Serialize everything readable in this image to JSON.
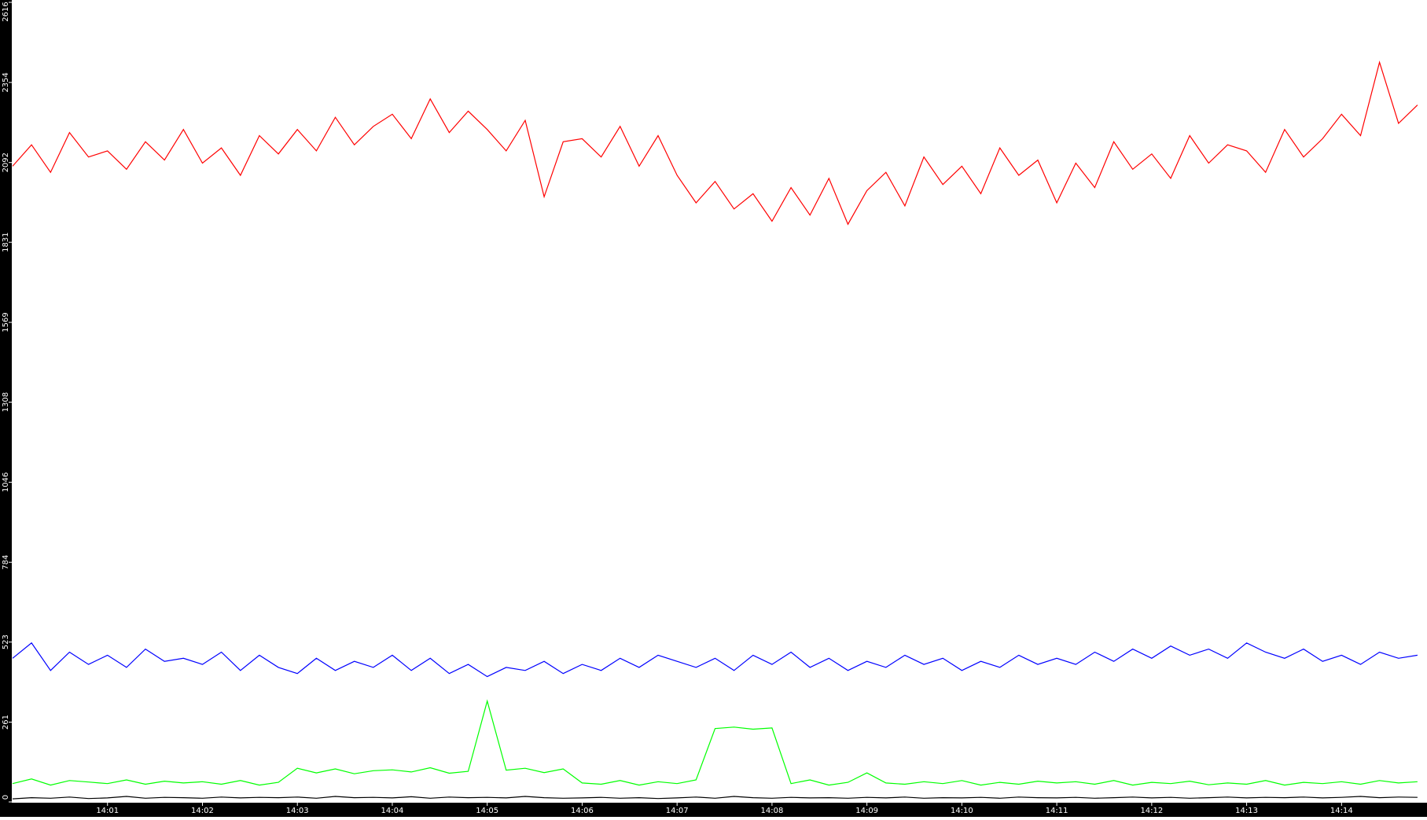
{
  "chart_data": {
    "type": "line",
    "categories": [
      null,
      null,
      null,
      null,
      null,
      "14:01",
      null,
      null,
      null,
      null,
      "14:02",
      null,
      null,
      null,
      null,
      "14:03",
      null,
      null,
      null,
      null,
      "14:04",
      null,
      null,
      null,
      null,
      "14:05",
      null,
      null,
      null,
      null,
      "14:06",
      null,
      null,
      null,
      null,
      "14:07",
      null,
      null,
      null,
      null,
      "14:08",
      null,
      null,
      null,
      null,
      "14:09",
      null,
      null,
      null,
      null,
      "14:10",
      null,
      null,
      null,
      null,
      "14:11",
      null,
      null,
      null,
      null,
      "14:12",
      null,
      null,
      null,
      null,
      "14:13",
      null,
      null,
      null,
      null,
      "14:14",
      null,
      null,
      null,
      null
    ],
    "series": [
      {
        "color": "#ff0000",
        "values": [
          2080,
          2150,
          2060,
          2190,
          2110,
          2130,
          2070,
          2160,
          2100,
          2200,
          2090,
          2140,
          2050,
          2180,
          2120,
          2200,
          2130,
          2240,
          2150,
          2210,
          2250,
          2170,
          2300,
          2190,
          2260,
          2200,
          2130,
          2230,
          1980,
          2160,
          2170,
          2110,
          2210,
          2080,
          2180,
          2050,
          1960,
          2030,
          1940,
          1990,
          1900,
          2010,
          1920,
          2040,
          1890,
          2000,
          2060,
          1950,
          2110,
          2020,
          2080,
          1990,
          2140,
          2050,
          2100,
          1960,
          2090,
          2010,
          2160,
          2070,
          2120,
          2040,
          2180,
          2090,
          2150,
          2130,
          2060,
          2200,
          2110,
          2170,
          2250,
          2180,
          2420,
          2220,
          2280
        ]
      },
      {
        "color": "#0000ff",
        "values": [
          470,
          520,
          430,
          490,
          450,
          480,
          440,
          500,
          460,
          470,
          450,
          490,
          430,
          480,
          440,
          420,
          470,
          430,
          460,
          440,
          480,
          430,
          470,
          420,
          450,
          410,
          440,
          430,
          460,
          420,
          450,
          430,
          470,
          440,
          480,
          460,
          440,
          470,
          430,
          480,
          450,
          490,
          440,
          470,
          430,
          460,
          440,
          480,
          450,
          470,
          430,
          460,
          440,
          480,
          450,
          470,
          450,
          490,
          460,
          500,
          470,
          510,
          480,
          500,
          470,
          520,
          490,
          470,
          500,
          460,
          480,
          450,
          490,
          470,
          480
        ]
      },
      {
        "color": "#00ff00",
        "values": [
          60,
          75,
          55,
          70,
          65,
          60,
          72,
          58,
          68,
          62,
          66,
          58,
          70,
          55,
          64,
          110,
          95,
          108,
          92,
          102,
          105,
          98,
          112,
          94,
          100,
          330,
          104,
          110,
          96,
          108,
          62,
          58,
          70,
          55,
          66,
          60,
          72,
          240,
          245,
          238,
          242,
          60,
          72,
          55,
          64,
          95,
          62,
          58,
          66,
          60,
          70,
          55,
          64,
          58,
          68,
          62,
          66,
          58,
          70,
          55,
          64,
          60,
          68,
          56,
          62,
          58,
          70,
          55,
          64,
          60,
          66,
          58,
          70,
          62,
          66
        ]
      },
      {
        "color": "#000000",
        "values": [
          10,
          14,
          12,
          16,
          11,
          13,
          18,
          12,
          15,
          14,
          12,
          16,
          13,
          15,
          14,
          16,
          12,
          18,
          14,
          15,
          13,
          17,
          12,
          16,
          14,
          15,
          13,
          18,
          14,
          12,
          13,
          15,
          12,
          14,
          11,
          13,
          16,
          12,
          18,
          14,
          12,
          15,
          13,
          14,
          12,
          15,
          13,
          16,
          12,
          14,
          13,
          15,
          12,
          16,
          14,
          13,
          15,
          12,
          14,
          16,
          13,
          15,
          12,
          14,
          16,
          13,
          15,
          14,
          16,
          13,
          15,
          18,
          14,
          16,
          15
        ]
      }
    ],
    "ylim": [
      0,
      2616
    ],
    "yticks": [
      0,
      261,
      523,
      784,
      1046,
      1308,
      1569,
      1831,
      2092,
      2354,
      2616
    ]
  }
}
